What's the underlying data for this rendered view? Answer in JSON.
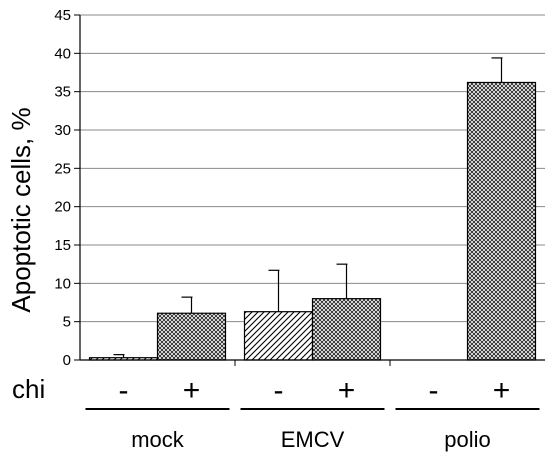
{
  "chart_data": {
    "type": "bar",
    "ylabel": "Apoptotic cells, %",
    "ylim": [
      0,
      45
    ],
    "yticks": [
      0,
      5,
      10,
      15,
      20,
      25,
      30,
      35,
      40,
      45
    ],
    "grid": true,
    "row_label": "chi",
    "groups": [
      {
        "name": "mock",
        "bars": [
          {
            "sign": "-",
            "value": 0.3,
            "error": 0.4,
            "pattern": "hatch"
          },
          {
            "sign": "+",
            "value": 6.1,
            "error": 2.1,
            "pattern": "crosshatch"
          }
        ]
      },
      {
        "name": "EMCV",
        "bars": [
          {
            "sign": "-",
            "value": 6.3,
            "error": 5.4,
            "pattern": "hatch"
          },
          {
            "sign": "+",
            "value": 8.0,
            "error": 4.5,
            "pattern": "crosshatch"
          }
        ]
      },
      {
        "name": "polio",
        "bars": [
          {
            "sign": "-",
            "value": 0.0,
            "error": 0.0,
            "pattern": "hatch"
          },
          {
            "sign": "+",
            "value": 36.2,
            "error": 3.2,
            "pattern": "crosshatch"
          }
        ]
      }
    ]
  }
}
